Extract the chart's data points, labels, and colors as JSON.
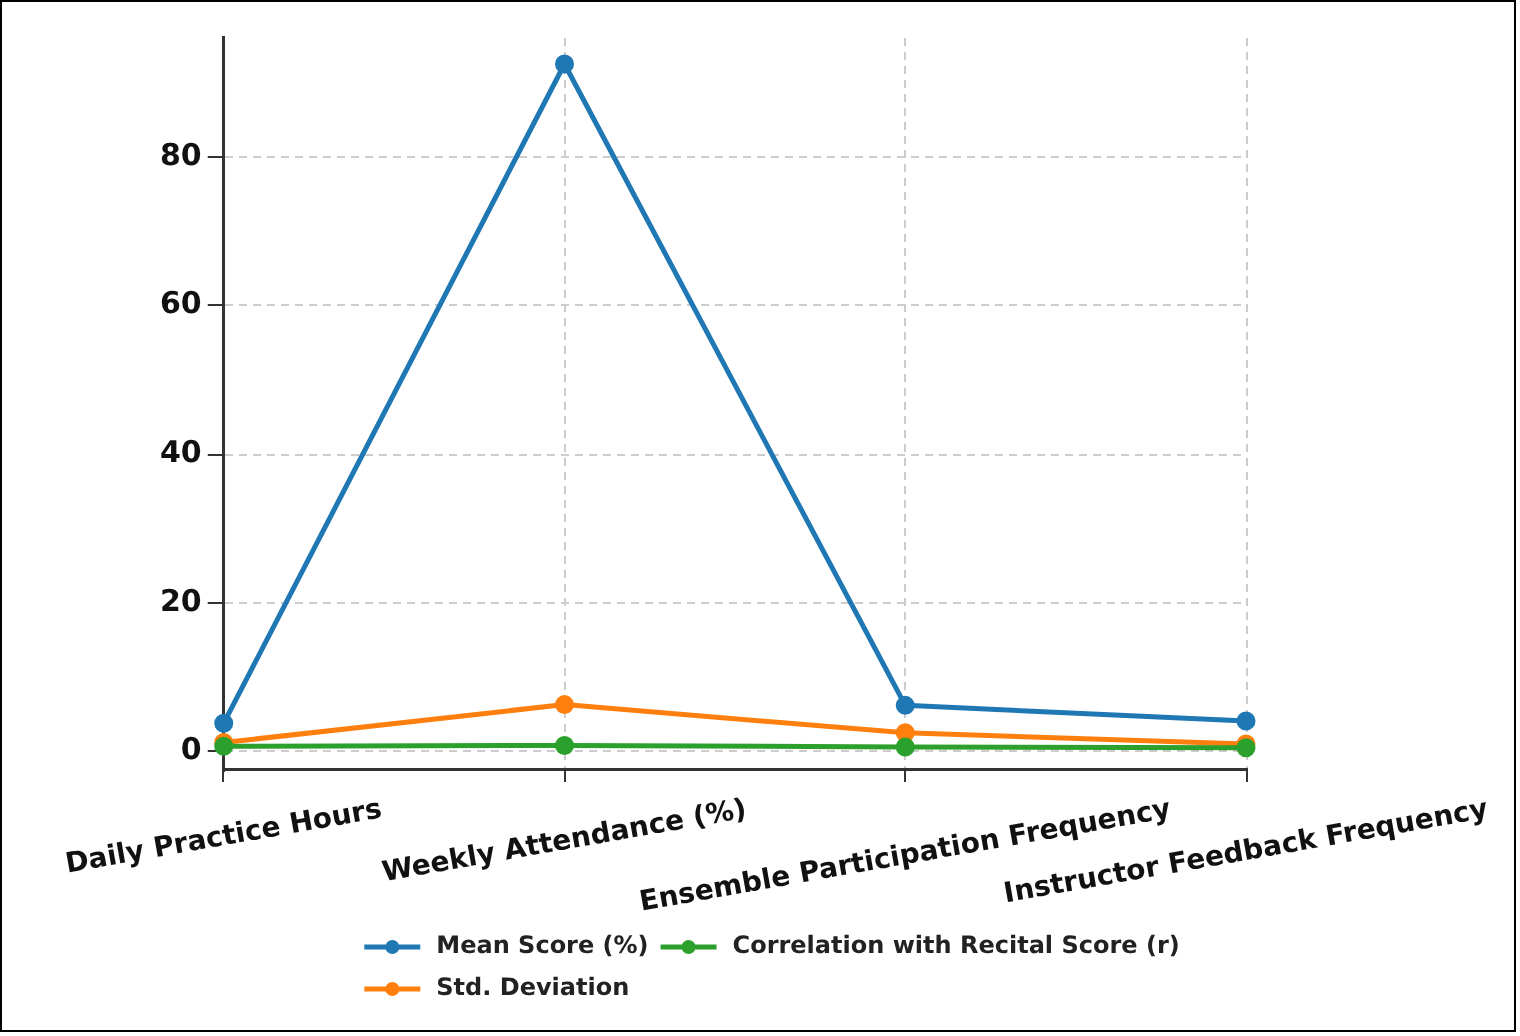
{
  "chart_data": {
    "type": "line",
    "categories": [
      "Daily Practice Hours",
      "Weekly Attendance (%)",
      "Ensemble Participation Frequency",
      "Instructor Feedback Frequency"
    ],
    "series": [
      {
        "name": "Mean Score (%)",
        "color": "#1f77b4",
        "values": [
          3.8,
          92.5,
          6.2,
          4.1
        ]
      },
      {
        "name": "Std. Deviation",
        "color": "#ff7f0e",
        "values": [
          1.2,
          6.3,
          2.5,
          1.0
        ]
      },
      {
        "name": "Correlation with Recital Score (r)",
        "color": "#2ca02c",
        "values": [
          0.7,
          0.8,
          0.6,
          0.5
        ]
      }
    ],
    "ylim": [
      -2.5,
      96
    ],
    "yticks": [
      0,
      20,
      40,
      60,
      80
    ],
    "grid": true,
    "legend": "bottom",
    "marker": "circle",
    "line_style": "solid"
  }
}
